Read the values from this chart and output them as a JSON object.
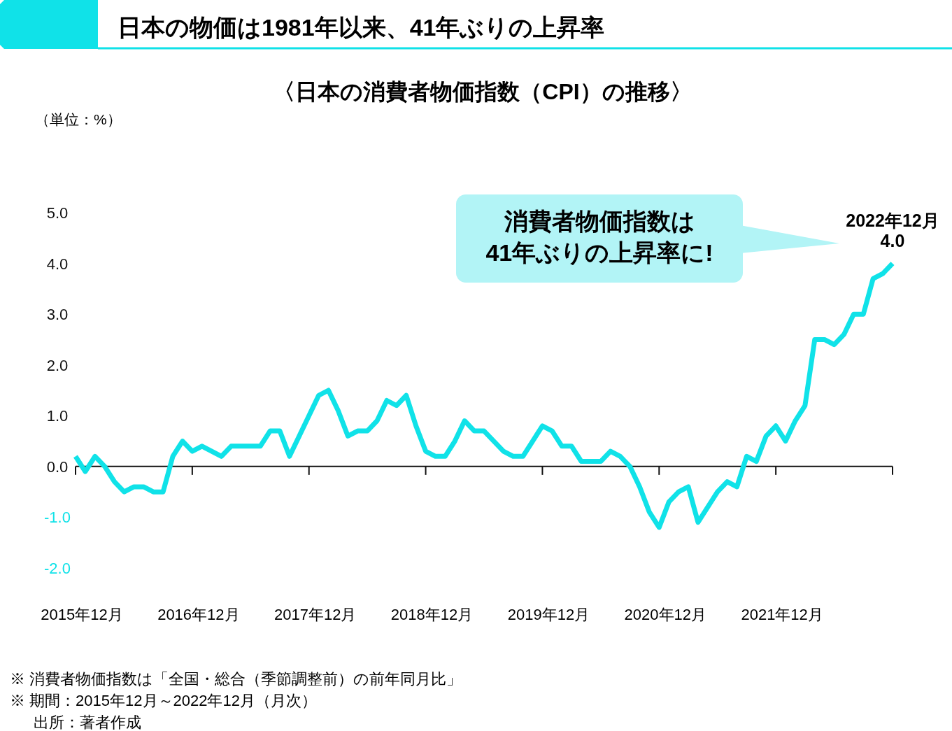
{
  "chart_data": {
    "type": "line",
    "title": "日本の物価は1981年以来、41年ぶりの上昇率",
    "subtitle": "〈日本の消費者物価指数（CPI）の推移〉",
    "color": "#10e2e8",
    "marker": "none",
    "line_style": "solid",
    "x": [
      "2015-12",
      "2016-01",
      "2016-02",
      "2016-03",
      "2016-04",
      "2016-05",
      "2016-06",
      "2016-07",
      "2016-08",
      "2016-09",
      "2016-10",
      "2016-11",
      "2016-12",
      "2017-01",
      "2017-02",
      "2017-03",
      "2017-04",
      "2017-05",
      "2017-06",
      "2017-07",
      "2017-08",
      "2017-09",
      "2017-10",
      "2017-11",
      "2017-12",
      "2018-01",
      "2018-02",
      "2018-03",
      "2018-04",
      "2018-05",
      "2018-06",
      "2018-07",
      "2018-08",
      "2018-09",
      "2018-10",
      "2018-11",
      "2018-12",
      "2019-01",
      "2019-02",
      "2019-03",
      "2019-04",
      "2019-05",
      "2019-06",
      "2019-07",
      "2019-08",
      "2019-09",
      "2019-10",
      "2019-11",
      "2019-12",
      "2020-01",
      "2020-02",
      "2020-03",
      "2020-04",
      "2020-05",
      "2020-06",
      "2020-07",
      "2020-08",
      "2020-09",
      "2020-10",
      "2020-11",
      "2020-12",
      "2021-01",
      "2021-02",
      "2021-03",
      "2021-04",
      "2021-05",
      "2021-06",
      "2021-07",
      "2021-08",
      "2021-09",
      "2021-10",
      "2021-11",
      "2021-12",
      "2022-01",
      "2022-02",
      "2022-03",
      "2022-04",
      "2022-05",
      "2022-06",
      "2022-07",
      "2022-08",
      "2022-09",
      "2022-10",
      "2022-11",
      "2022-12"
    ],
    "values": [
      0.2,
      -0.1,
      0.2,
      0.0,
      -0.3,
      -0.5,
      -0.4,
      -0.4,
      -0.5,
      -0.5,
      0.2,
      0.5,
      0.3,
      0.4,
      0.3,
      0.2,
      0.4,
      0.4,
      0.4,
      0.4,
      0.7,
      0.7,
      0.2,
      0.6,
      1.0,
      1.4,
      1.5,
      1.1,
      0.6,
      0.7,
      0.7,
      0.9,
      1.3,
      1.2,
      1.4,
      0.8,
      0.3,
      0.2,
      0.2,
      0.5,
      0.9,
      0.7,
      0.7,
      0.5,
      0.3,
      0.2,
      0.2,
      0.5,
      0.8,
      0.7,
      0.4,
      0.4,
      0.1,
      0.1,
      0.1,
      0.3,
      0.2,
      0.0,
      -0.4,
      -0.9,
      -1.2,
      -0.7,
      -0.5,
      -0.4,
      -1.1,
      -0.8,
      -0.5,
      -0.3,
      -0.4,
      0.2,
      0.1,
      0.6,
      0.8,
      0.5,
      0.9,
      1.2,
      2.5,
      2.5,
      2.4,
      2.6,
      3.0,
      3.0,
      3.7,
      3.8,
      4.0
    ],
    "xlim": [
      "2015-12",
      "2022-12"
    ],
    "xticks": [
      {
        "value": "2015-12",
        "label": "2015年12月"
      },
      {
        "value": "2016-12",
        "label": "2016年12月"
      },
      {
        "value": "2017-12",
        "label": "2017年12月"
      },
      {
        "value": "2018-12",
        "label": "2018年12月"
      },
      {
        "value": "2019-12",
        "label": "2019年12月"
      },
      {
        "value": "2020-12",
        "label": "2020年12月"
      },
      {
        "value": "2021-12",
        "label": "2021年12月"
      },
      {
        "value": "2022-12",
        "label": null
      }
    ],
    "ylim": [
      -2,
      5
    ],
    "yticks": [
      {
        "value": 5,
        "label": "5.0"
      },
      {
        "value": 4,
        "label": "4.0"
      },
      {
        "value": 3,
        "label": "3.0"
      },
      {
        "value": 2,
        "label": "2.0"
      },
      {
        "value": 1,
        "label": "1.0"
      },
      {
        "value": 0,
        "label": "0.0"
      },
      {
        "value": -1,
        "label": "-1.0"
      },
      {
        "value": -2,
        "label": "-2.0"
      }
    ],
    "annotations": [
      "（単位：%）",
      "消費者物価指数は\n41年ぶりの上昇率に!",
      {
        "text": "2022年12月\n4.0",
        "x": "2022-12",
        "y": 4.0
      },
      "※ 消費者物価指数は「全国・総合（季節調整前）の前年同月比」",
      "※ 期間：2015年12月～2022年12月（月次）",
      "出所：著者作成"
    ]
  }
}
